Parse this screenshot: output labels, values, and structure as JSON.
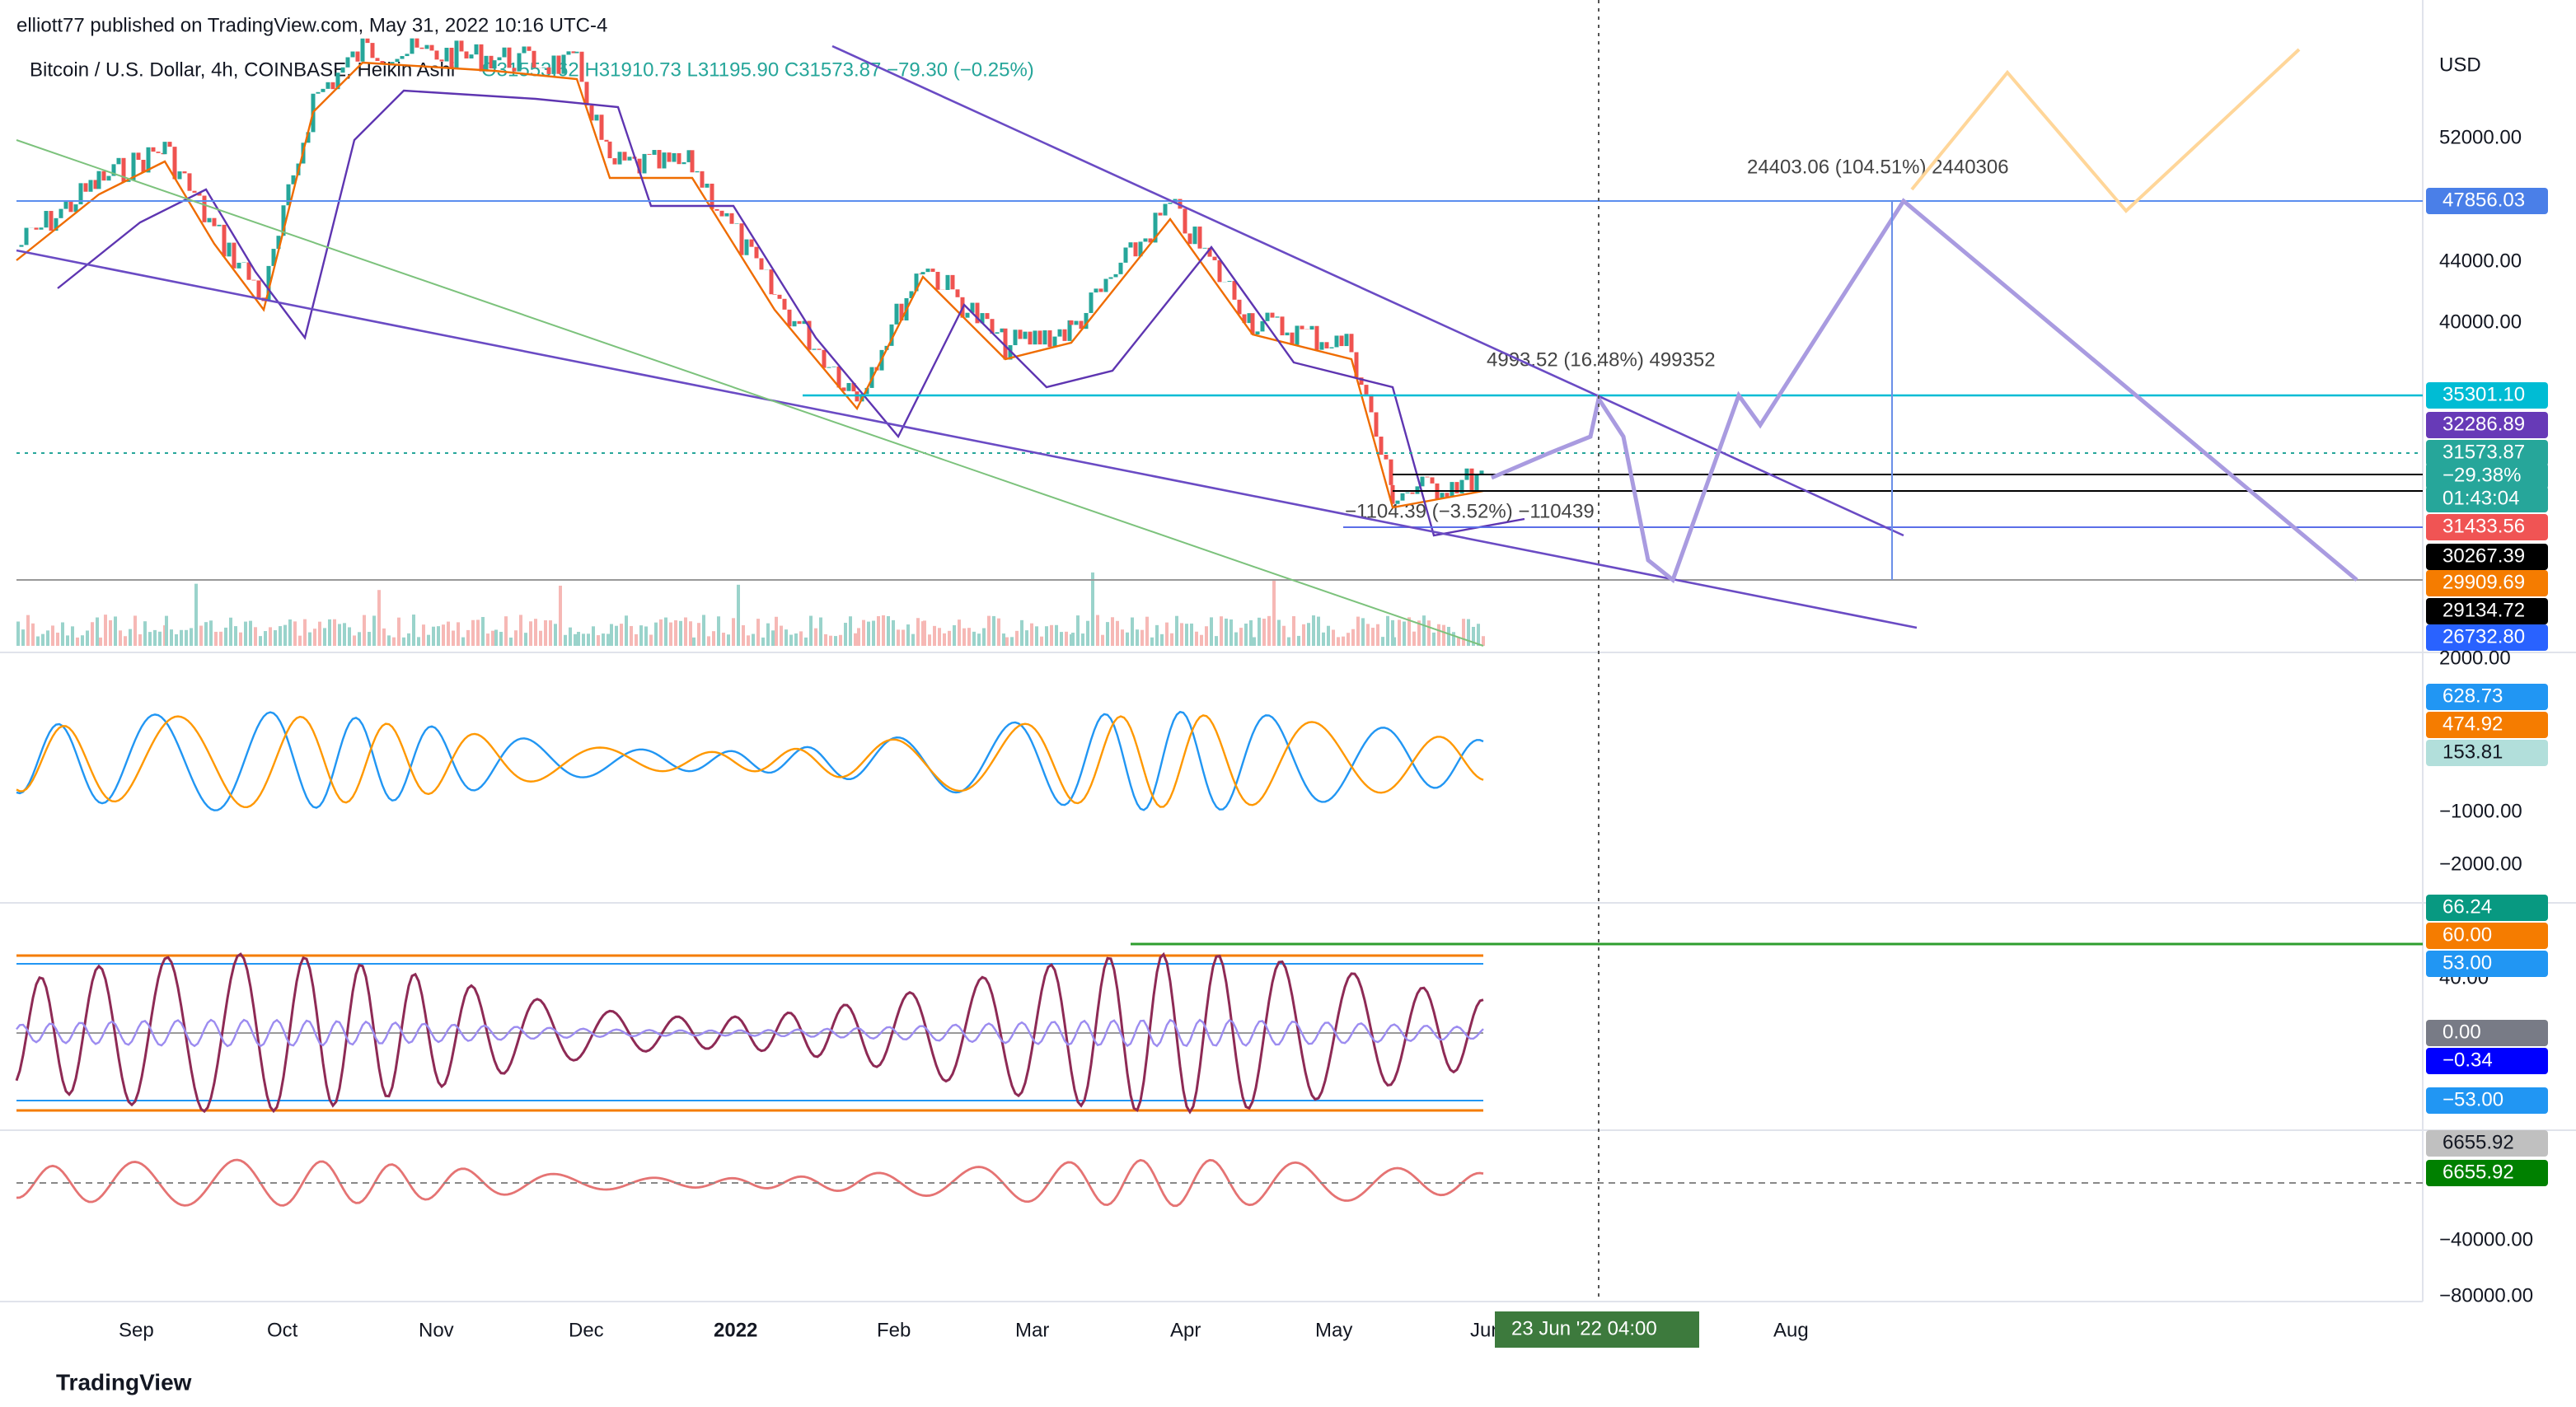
{
  "header": {
    "publisher": "elliott77 published on TradingView.com, May 31, 2022 10:16 UTC-4"
  },
  "legend": {
    "symbol": "Bitcoin / U.S. Dollar, 4h, COINBASE, Heikin Ashi",
    "ohlc": "O31553.62 H31910.73 L31195.90 C31573.87 −79.30 (−0.25%)"
  },
  "price_axis": {
    "currency": "USD",
    "ticks": [
      "52000.00",
      "44000.00",
      "40000.00"
    ],
    "badges": [
      {
        "text": "47856.03",
        "color": "#4a7fe8"
      },
      {
        "text": "35301.10",
        "color": "#00bcd4"
      },
      {
        "text": "32286.89",
        "color": "#673ab7"
      },
      {
        "text": "31573.87",
        "color": "#26a69a"
      },
      {
        "text": "−29.38%",
        "color": "#26a69a"
      },
      {
        "text": "01:43:04",
        "color": "#26a69a"
      },
      {
        "text": "31433.56",
        "color": "#f05454"
      },
      {
        "text": "30267.39",
        "color": "#000000"
      },
      {
        "text": "29909.69",
        "color": "#f57c00"
      },
      {
        "text": "29134.72",
        "color": "#000000"
      },
      {
        "text": "26732.80",
        "color": "#2962ff"
      }
    ]
  },
  "annotations": [
    "24403.06 (104.51%) 2440306",
    "4993.52 (16.48%) 499352",
    "−1104.39 (−3.52%) −110439"
  ],
  "macd_axis": {
    "ticks": [
      "2000.00",
      "−1000.00",
      "−2000.00"
    ],
    "badges": [
      {
        "text": "628.73",
        "color": "#2196f3"
      },
      {
        "text": "474.92",
        "color": "#f57c00"
      },
      {
        "text": "153.81",
        "color": "#b2dfdb"
      }
    ]
  },
  "rsi_axis": {
    "ticks": [
      "40.00"
    ],
    "badges": [
      {
        "text": "66.24",
        "color": "#089981"
      },
      {
        "text": "60.00",
        "color": "#f57c00"
      },
      {
        "text": "53.00",
        "color": "#2196f3"
      },
      {
        "text": "0.00",
        "color": "#787b86"
      },
      {
        "text": "−0.34",
        "color": "#0000ff"
      },
      {
        "text": "−53.00",
        "color": "#2196f3"
      }
    ]
  },
  "obv_axis": {
    "ticks": [
      "−40000.00",
      "−80000.00"
    ],
    "badges": [
      {
        "text": "6655.92",
        "color": "#c0c0c0"
      },
      {
        "text": "6655.92",
        "color": "#008000"
      }
    ]
  },
  "time_axis": {
    "labels": [
      "Sep",
      "Oct",
      "Nov",
      "Dec",
      "2022",
      "Feb",
      "Mar",
      "Apr",
      "May",
      "Jun",
      "Aug"
    ],
    "crosshair": "23 Jun '22  04:00"
  },
  "footer": {
    "brand": "TradingView"
  }
}
